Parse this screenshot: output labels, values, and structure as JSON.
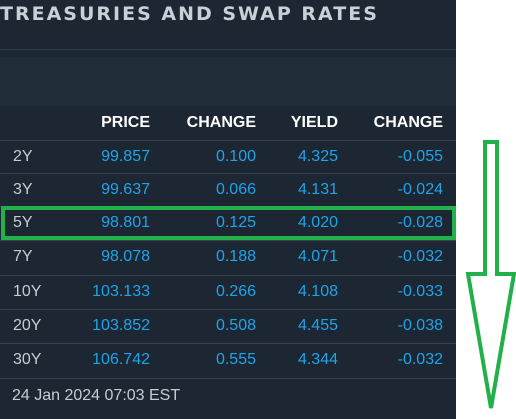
{
  "widget": {
    "title": "TREASURIES AND SWAP RATES",
    "columns": {
      "price": "PRICE",
      "change": "CHANGE",
      "yield": "YIELD",
      "yield_change": "CHANGE"
    },
    "rows": [
      {
        "tenor": "2Y",
        "price": "99.857",
        "change": "0.100",
        "yield": "4.325",
        "yield_change": "-0.055"
      },
      {
        "tenor": "3Y",
        "price": "99.637",
        "change": "0.066",
        "yield": "4.131",
        "yield_change": "-0.024"
      },
      {
        "tenor": "5Y",
        "price": "98.801",
        "change": "0.125",
        "yield": "4.020",
        "yield_change": "-0.028"
      },
      {
        "tenor": "7Y",
        "price": "98.078",
        "change": "0.188",
        "yield": "4.071",
        "yield_change": "-0.032"
      },
      {
        "tenor": "10Y",
        "price": "103.133",
        "change": "0.266",
        "yield": "4.108",
        "yield_change": "-0.033"
      },
      {
        "tenor": "20Y",
        "price": "103.852",
        "change": "0.508",
        "yield": "4.455",
        "yield_change": "-0.038"
      },
      {
        "tenor": "30Y",
        "price": "106.742",
        "change": "0.555",
        "yield": "4.344",
        "yield_change": "-0.032"
      }
    ],
    "timestamp": "24 Jan 2024 07:03 EST"
  },
  "annotation": {
    "highlighted_tenor": "5Y",
    "box_color": "#22b04b",
    "arrow_direction": "down"
  },
  "colors": {
    "panel_bg": "#1c2733",
    "value_blue": "#1ea4e8",
    "header_white": "#ffffff",
    "label_grey": "#c6ccd3"
  }
}
